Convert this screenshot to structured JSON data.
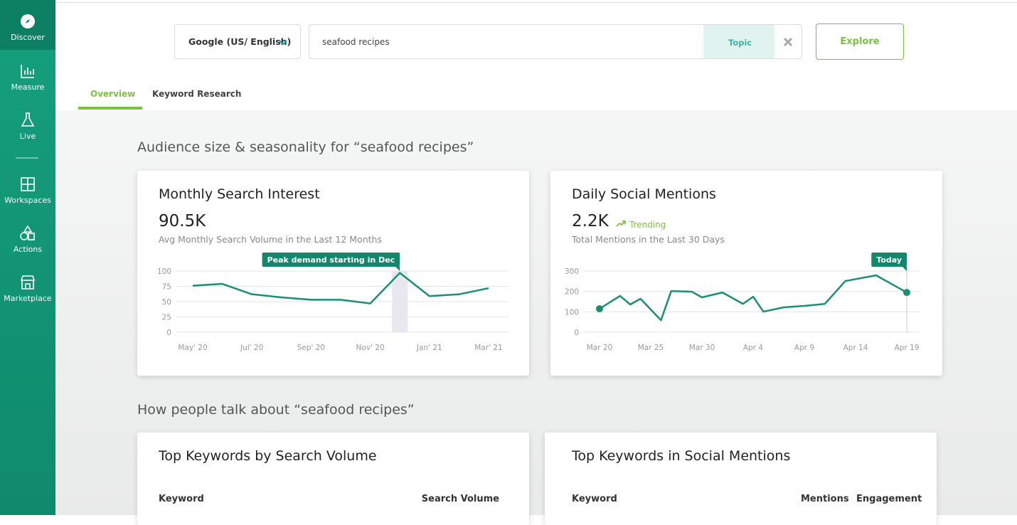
{
  "sidebar": [
    "Discover",
    "Measure",
    "Live",
    "Workspaces",
    "Actions",
    "Marketplace"
  ],
  "search": {
    "engine": "Google (US/ English)",
    "query": "seafood recipes",
    "mode": "Topic",
    "button": "Explore"
  },
  "tabs": [
    "Overview",
    "Keyword Research"
  ],
  "sections": [
    "Audience size & seasonality for “seafood recipes”",
    "How people talk about “seafood recipes”"
  ],
  "chart_data": [
    {
      "type": "line",
      "title": "Monthly Search Interest",
      "metric": "90.5K",
      "subtitle": "Avg Monthly Search Volume in the Last 12 Months",
      "annotation": "Peak demand starting in Dec",
      "color": "#1b8f72",
      "grid": true,
      "categories": [
        "May' 20",
        null,
        "Jul' 20",
        null,
        "Sep' 20",
        null,
        "Nov' 20",
        null,
        "Jan' 21",
        null,
        "Mar' 21"
      ],
      "values": [
        76,
        79,
        62,
        57,
        53,
        53,
        47,
        97,
        59,
        62,
        72
      ],
      "ylim": [
        0,
        100
      ],
      "yticks": [
        0,
        25,
        50,
        75,
        100
      ]
    },
    {
      "type": "line",
      "title": "Daily Social Mentions",
      "metric": "2.2K",
      "trend": "Trending",
      "subtitle": "Total Mentions in the Last 30 Days",
      "annotation": "Today",
      "color": "#1b8f72",
      "grid": true,
      "x": [
        0,
        2,
        3,
        4,
        6,
        7,
        9,
        10,
        12,
        14,
        15,
        16,
        18,
        20,
        22,
        24,
        27,
        30
      ],
      "values": [
        115,
        178,
        136,
        164,
        59,
        202,
        199,
        171,
        195,
        139,
        174,
        101,
        122,
        129,
        139,
        251,
        279,
        195
      ],
      "xlim": [
        0,
        30
      ],
      "xticks": [
        {
          "value": 0,
          "label": "Mar 20"
        },
        {
          "value": 5,
          "label": "Mar 25"
        },
        {
          "value": 10,
          "label": "Mar 30"
        },
        {
          "value": 15,
          "label": "Apr 4"
        },
        {
          "value": 20,
          "label": "Apr 9"
        },
        {
          "value": 25,
          "label": "Apr 14"
        },
        {
          "value": 30,
          "label": "Apr 19"
        }
      ],
      "ylim": [
        0,
        300
      ],
      "yticks": [
        0,
        100,
        200,
        300
      ]
    }
  ],
  "tables": [
    {
      "title": "Top Keywords by Search Volume",
      "columns": [
        "Keyword",
        "Search Volume"
      ]
    },
    {
      "title": "Top Keywords in Social Mentions",
      "columns": [
        "Keyword",
        "Mentions",
        "Engagement"
      ]
    }
  ]
}
